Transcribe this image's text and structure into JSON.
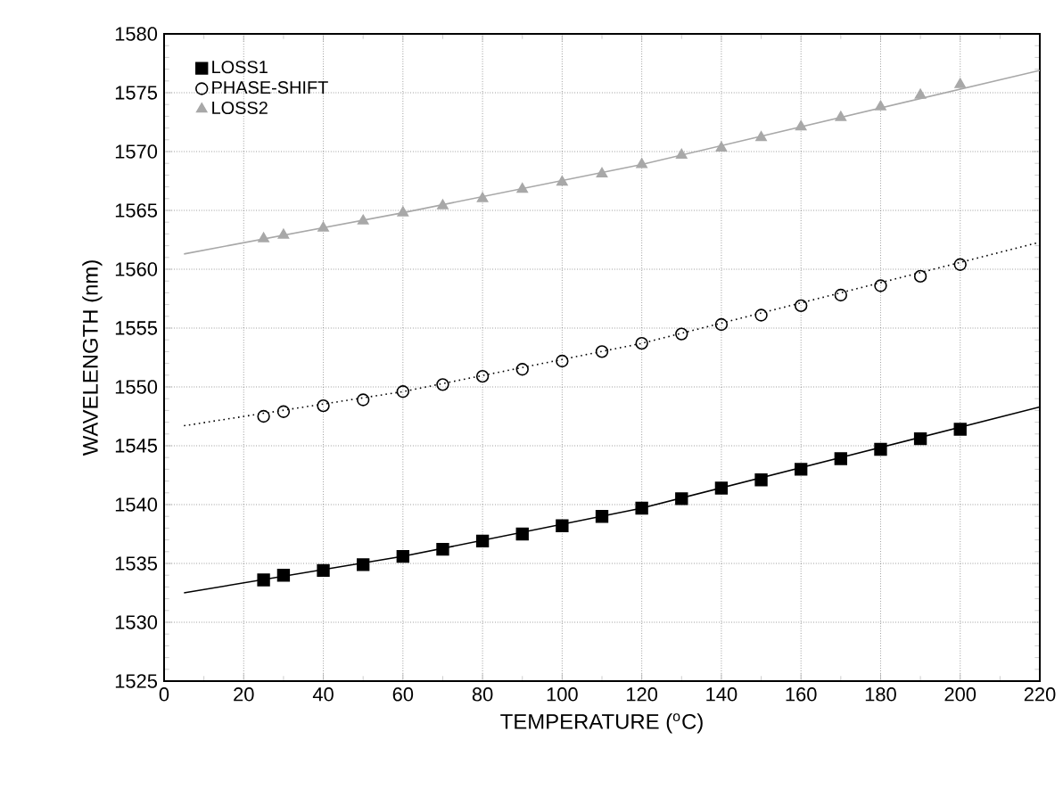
{
  "chart_data": {
    "type": "scatter",
    "xlabel": "TEMPERATURE ($^{o}$C)",
    "ylabel": "WAVELENGTH (nm)",
    "xlim": [
      0,
      220
    ],
    "ylim": [
      1525,
      1580
    ],
    "xticks": [
      0,
      20,
      40,
      60,
      80,
      100,
      120,
      140,
      160,
      180,
      200,
      220
    ],
    "yticks": [
      1525,
      1530,
      1535,
      1540,
      1545,
      1550,
      1555,
      1560,
      1565,
      1570,
      1575,
      1580
    ],
    "grid": true,
    "legend": "top left",
    "x": [
      25,
      30,
      40,
      50,
      60,
      70,
      80,
      90,
      100,
      110,
      120,
      130,
      140,
      150,
      160,
      170,
      180,
      190,
      200
    ],
    "series": [
      {
        "name": "LOSS1",
        "color": "#000000",
        "marker": "square",
        "values": [
          1533.6,
          1534.0,
          1534.4,
          1534.9,
          1535.6,
          1536.2,
          1536.9,
          1537.5,
          1538.2,
          1539.0,
          1539.7,
          1540.5,
          1541.4,
          1542.1,
          1543.0,
          1543.9,
          1544.7,
          1545.6,
          1546.4
        ]
      },
      {
        "name": "PHASE-SHIFT",
        "color": "#000000",
        "marker": "circle",
        "values": [
          1547.5,
          1547.9,
          1548.4,
          1548.9,
          1549.6,
          1550.2,
          1550.9,
          1551.5,
          1552.2,
          1553.0,
          1553.7,
          1554.5,
          1555.3,
          1556.1,
          1556.9,
          1557.8,
          1558.6,
          1559.4,
          1560.4
        ]
      },
      {
        "name": "LOSS2",
        "color": "#a8a8a8",
        "marker": "triangle",
        "values": [
          1562.6,
          1562.9,
          1563.5,
          1564.1,
          1564.8,
          1565.4,
          1566.0,
          1566.8,
          1567.4,
          1568.1,
          1568.9,
          1569.7,
          1570.3,
          1571.2,
          1572.1,
          1572.9,
          1573.8,
          1574.8,
          1575.7
        ]
      },
      {
        "type": "line",
        "color": "#000000",
        "line_style": "solid",
        "marker": "none",
        "x": [
          5,
          60,
          120,
          220
        ],
        "values": [
          1532.5,
          1535.6,
          1539.7,
          1548.3
        ]
      },
      {
        "type": "line",
        "color": "#000000",
        "line_style": "dotted",
        "marker": "none",
        "x": [
          5,
          60,
          120,
          220
        ],
        "values": [
          1546.7,
          1549.6,
          1553.7,
          1562.3
        ]
      },
      {
        "type": "line",
        "color": "#a8a8a8",
        "line_style": "solid",
        "marker": "none",
        "x": [
          5,
          60,
          120,
          220
        ],
        "values": [
          1561.3,
          1564.8,
          1568.9,
          1576.9
        ]
      }
    ]
  }
}
